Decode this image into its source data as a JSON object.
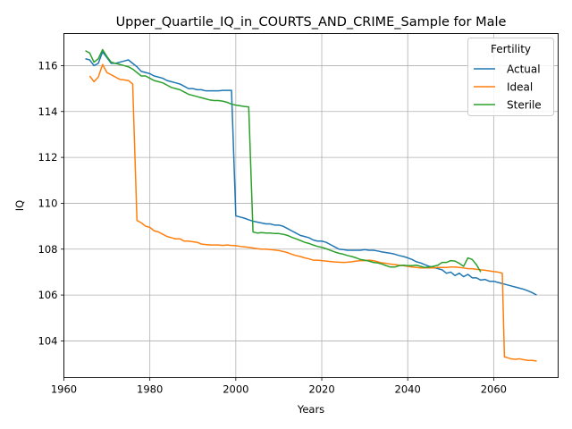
{
  "chart_data": {
    "type": "line",
    "title": "Upper_Quartile_IQ_in_COURTS_AND_CRIME_Sample for Male",
    "xlabel": "Years",
    "ylabel": "IQ",
    "xlim": [
      1960,
      2075
    ],
    "ylim": [
      102.4,
      117.4
    ],
    "xticks": [
      1960,
      1980,
      2000,
      2020,
      2040,
      2060
    ],
    "yticks": [
      104,
      106,
      108,
      110,
      112,
      114,
      116
    ],
    "grid": true,
    "legend": {
      "title": "Fertility",
      "position": "upper right"
    },
    "series": [
      {
        "name": "Actual",
        "color": "#1f77b4",
        "points": [
          [
            1965,
            116.3
          ],
          [
            1966,
            116.25
          ],
          [
            1967,
            116.0
          ],
          [
            1968,
            116.1
          ],
          [
            1969,
            116.6
          ],
          [
            1970,
            116.35
          ],
          [
            1971,
            116.1
          ],
          [
            1972,
            116.1
          ],
          [
            1973,
            116.15
          ],
          [
            1974,
            116.2
          ],
          [
            1975,
            116.25
          ],
          [
            1976,
            116.1
          ],
          [
            1977,
            115.95
          ],
          [
            1978,
            115.75
          ],
          [
            1979,
            115.7
          ],
          [
            1980,
            115.65
          ],
          [
            1981,
            115.55
          ],
          [
            1982,
            115.5
          ],
          [
            1983,
            115.45
          ],
          [
            1984,
            115.35
          ],
          [
            1985,
            115.3
          ],
          [
            1986,
            115.25
          ],
          [
            1987,
            115.2
          ],
          [
            1988,
            115.1
          ],
          [
            1989,
            115.0
          ],
          [
            1990,
            115.0
          ],
          [
            1991,
            114.95
          ],
          [
            1992,
            114.95
          ],
          [
            1993,
            114.9
          ],
          [
            1994,
            114.9
          ],
          [
            1995,
            114.9
          ],
          [
            1996,
            114.9
          ],
          [
            1997,
            114.92
          ],
          [
            1998,
            114.92
          ],
          [
            1999,
            114.92
          ],
          [
            2000,
            109.45
          ],
          [
            2001,
            109.4
          ],
          [
            2002,
            109.35
          ],
          [
            2003,
            109.28
          ],
          [
            2004,
            109.22
          ],
          [
            2005,
            109.18
          ],
          [
            2006,
            109.14
          ],
          [
            2007,
            109.1
          ],
          [
            2008,
            109.1
          ],
          [
            2009,
            109.05
          ],
          [
            2010,
            109.05
          ],
          [
            2011,
            109.0
          ],
          [
            2012,
            108.9
          ],
          [
            2013,
            108.8
          ],
          [
            2014,
            108.7
          ],
          [
            2015,
            108.6
          ],
          [
            2016,
            108.55
          ],
          [
            2017,
            108.5
          ],
          [
            2018,
            108.4
          ],
          [
            2019,
            108.35
          ],
          [
            2020,
            108.35
          ],
          [
            2021,
            108.3
          ],
          [
            2022,
            108.2
          ],
          [
            2023,
            108.1
          ],
          [
            2024,
            108.0
          ],
          [
            2025,
            107.98
          ],
          [
            2026,
            107.95
          ],
          [
            2027,
            107.95
          ],
          [
            2028,
            107.95
          ],
          [
            2029,
            107.95
          ],
          [
            2030,
            107.98
          ],
          [
            2031,
            107.95
          ],
          [
            2032,
            107.95
          ],
          [
            2033,
            107.92
          ],
          [
            2034,
            107.88
          ],
          [
            2035,
            107.85
          ],
          [
            2036,
            107.82
          ],
          [
            2037,
            107.78
          ],
          [
            2038,
            107.72
          ],
          [
            2039,
            107.68
          ],
          [
            2040,
            107.62
          ],
          [
            2041,
            107.55
          ],
          [
            2042,
            107.45
          ],
          [
            2043,
            107.4
          ],
          [
            2044,
            107.32
          ],
          [
            2045,
            107.25
          ],
          [
            2046,
            107.2
          ],
          [
            2047,
            107.15
          ],
          [
            2048,
            107.1
          ],
          [
            2049,
            106.95
          ],
          [
            2050,
            107.0
          ],
          [
            2051,
            106.85
          ],
          [
            2052,
            106.95
          ],
          [
            2053,
            106.8
          ],
          [
            2054,
            106.9
          ],
          [
            2055,
            106.75
          ],
          [
            2056,
            106.75
          ],
          [
            2057,
            106.65
          ],
          [
            2058,
            106.68
          ],
          [
            2059,
            106.6
          ],
          [
            2060,
            106.6
          ],
          [
            2061,
            106.55
          ],
          [
            2062,
            106.5
          ],
          [
            2063,
            106.45
          ],
          [
            2064,
            106.4
          ],
          [
            2065,
            106.35
          ],
          [
            2066,
            106.3
          ],
          [
            2067,
            106.25
          ],
          [
            2068,
            106.18
          ],
          [
            2069,
            106.1
          ],
          [
            2070,
            106.0
          ]
        ]
      },
      {
        "name": "Ideal",
        "color": "#ff7f0e",
        "points": [
          [
            1966,
            115.55
          ],
          [
            1967,
            115.3
          ],
          [
            1968,
            115.5
          ],
          [
            1969,
            116.05
          ],
          [
            1970,
            115.7
          ],
          [
            1971,
            115.6
          ],
          [
            1972,
            115.5
          ],
          [
            1973,
            115.4
          ],
          [
            1974,
            115.38
          ],
          [
            1975,
            115.35
          ],
          [
            1976,
            115.2
          ],
          [
            1977,
            109.25
          ],
          [
            1978,
            109.15
          ],
          [
            1979,
            109.0
          ],
          [
            1980,
            108.95
          ],
          [
            1981,
            108.8
          ],
          [
            1982,
            108.75
          ],
          [
            1983,
            108.65
          ],
          [
            1984,
            108.55
          ],
          [
            1985,
            108.5
          ],
          [
            1986,
            108.45
          ],
          [
            1987,
            108.45
          ],
          [
            1988,
            108.35
          ],
          [
            1989,
            108.35
          ],
          [
            1990,
            108.32
          ],
          [
            1991,
            108.3
          ],
          [
            1992,
            108.22
          ],
          [
            1993,
            108.2
          ],
          [
            1994,
            108.18
          ],
          [
            1995,
            108.18
          ],
          [
            1996,
            108.18
          ],
          [
            1997,
            108.16
          ],
          [
            1998,
            108.18
          ],
          [
            1999,
            108.16
          ],
          [
            2000,
            108.15
          ],
          [
            2001,
            108.12
          ],
          [
            2002,
            108.1
          ],
          [
            2003,
            108.08
          ],
          [
            2004,
            108.05
          ],
          [
            2005,
            108.02
          ],
          [
            2006,
            108.0
          ],
          [
            2007,
            108.0
          ],
          [
            2008,
            107.98
          ],
          [
            2009,
            107.96
          ],
          [
            2010,
            107.94
          ],
          [
            2011,
            107.9
          ],
          [
            2012,
            107.85
          ],
          [
            2013,
            107.78
          ],
          [
            2014,
            107.72
          ],
          [
            2015,
            107.68
          ],
          [
            2016,
            107.62
          ],
          [
            2017,
            107.58
          ],
          [
            2018,
            107.52
          ],
          [
            2019,
            107.52
          ],
          [
            2020,
            107.5
          ],
          [
            2021,
            107.48
          ],
          [
            2022,
            107.46
          ],
          [
            2023,
            107.44
          ],
          [
            2024,
            107.43
          ],
          [
            2025,
            107.42
          ],
          [
            2026,
            107.43
          ],
          [
            2027,
            107.45
          ],
          [
            2028,
            107.48
          ],
          [
            2029,
            107.5
          ],
          [
            2030,
            107.5
          ],
          [
            2031,
            107.52
          ],
          [
            2032,
            107.5
          ],
          [
            2033,
            107.45
          ],
          [
            2034,
            107.4
          ],
          [
            2035,
            107.38
          ],
          [
            2036,
            107.35
          ],
          [
            2037,
            107.33
          ],
          [
            2038,
            107.3
          ],
          [
            2039,
            107.28
          ],
          [
            2040,
            107.25
          ],
          [
            2041,
            107.22
          ],
          [
            2042,
            107.2
          ],
          [
            2043,
            107.18
          ],
          [
            2044,
            107.18
          ],
          [
            2045,
            107.18
          ],
          [
            2046,
            107.18
          ],
          [
            2047,
            107.2
          ],
          [
            2048,
            107.2
          ],
          [
            2049,
            107.2
          ],
          [
            2050,
            107.22
          ],
          [
            2051,
            107.22
          ],
          [
            2052,
            107.2
          ],
          [
            2053,
            107.18
          ],
          [
            2054,
            107.15
          ],
          [
            2055,
            107.15
          ],
          [
            2056,
            107.12
          ],
          [
            2057,
            107.1
          ],
          [
            2058,
            107.08
          ],
          [
            2059,
            107.05
          ],
          [
            2060,
            107.02
          ],
          [
            2061,
            107.0
          ],
          [
            2062,
            106.95
          ],
          [
            2062.5,
            103.3
          ],
          [
            2063,
            103.28
          ],
          [
            2064,
            103.22
          ],
          [
            2065,
            103.2
          ],
          [
            2066,
            103.22
          ],
          [
            2067,
            103.18
          ],
          [
            2068,
            103.15
          ],
          [
            2069,
            103.15
          ],
          [
            2070,
            103.12
          ]
        ]
      },
      {
        "name": "Sterile",
        "color": "#2ca02c",
        "points": [
          [
            1965,
            116.65
          ],
          [
            1966,
            116.55
          ],
          [
            1967,
            116.15
          ],
          [
            1968,
            116.3
          ],
          [
            1969,
            116.7
          ],
          [
            1970,
            116.4
          ],
          [
            1971,
            116.15
          ],
          [
            1972,
            116.1
          ],
          [
            1973,
            116.05
          ],
          [
            1974,
            116.0
          ],
          [
            1975,
            115.95
          ],
          [
            1976,
            115.85
          ],
          [
            1977,
            115.7
          ],
          [
            1978,
            115.55
          ],
          [
            1979,
            115.55
          ],
          [
            1980,
            115.45
          ],
          [
            1981,
            115.35
          ],
          [
            1982,
            115.3
          ],
          [
            1983,
            115.25
          ],
          [
            1984,
            115.15
          ],
          [
            1985,
            115.05
          ],
          [
            1986,
            115.0
          ],
          [
            1987,
            114.95
          ],
          [
            1988,
            114.85
          ],
          [
            1989,
            114.75
          ],
          [
            1990,
            114.7
          ],
          [
            1991,
            114.65
          ],
          [
            1992,
            114.6
          ],
          [
            1993,
            114.55
          ],
          [
            1994,
            114.5
          ],
          [
            1995,
            114.48
          ],
          [
            1996,
            114.48
          ],
          [
            1997,
            114.45
          ],
          [
            1998,
            114.4
          ],
          [
            1999,
            114.32
          ],
          [
            2000,
            114.28
          ],
          [
            2001,
            114.25
          ],
          [
            2002,
            114.22
          ],
          [
            2003,
            114.2
          ],
          [
            2004,
            108.75
          ],
          [
            2005,
            108.7
          ],
          [
            2006,
            108.72
          ],
          [
            2007,
            108.7
          ],
          [
            2008,
            108.7
          ],
          [
            2009,
            108.68
          ],
          [
            2010,
            108.68
          ],
          [
            2011,
            108.65
          ],
          [
            2012,
            108.6
          ],
          [
            2013,
            108.52
          ],
          [
            2014,
            108.45
          ],
          [
            2015,
            108.38
          ],
          [
            2016,
            108.3
          ],
          [
            2017,
            108.25
          ],
          [
            2018,
            108.18
          ],
          [
            2019,
            108.12
          ],
          [
            2020,
            108.08
          ],
          [
            2021,
            108.02
          ],
          [
            2022,
            107.95
          ],
          [
            2023,
            107.88
          ],
          [
            2024,
            107.82
          ],
          [
            2025,
            107.78
          ],
          [
            2026,
            107.72
          ],
          [
            2027,
            107.68
          ],
          [
            2028,
            107.62
          ],
          [
            2029,
            107.55
          ],
          [
            2030,
            107.52
          ],
          [
            2031,
            107.48
          ],
          [
            2032,
            107.42
          ],
          [
            2033,
            107.4
          ],
          [
            2034,
            107.35
          ],
          [
            2035,
            107.28
          ],
          [
            2036,
            107.22
          ],
          [
            2037,
            107.22
          ],
          [
            2038,
            107.28
          ],
          [
            2039,
            107.3
          ],
          [
            2040,
            107.28
          ],
          [
            2041,
            107.28
          ],
          [
            2042,
            107.3
          ],
          [
            2043,
            107.25
          ],
          [
            2044,
            107.2
          ],
          [
            2045,
            107.22
          ],
          [
            2046,
            107.25
          ],
          [
            2047,
            107.3
          ],
          [
            2048,
            107.42
          ],
          [
            2049,
            107.42
          ],
          [
            2050,
            107.5
          ],
          [
            2051,
            107.48
          ],
          [
            2052,
            107.38
          ],
          [
            2053,
            107.25
          ],
          [
            2054,
            107.62
          ],
          [
            2055,
            107.55
          ],
          [
            2056,
            107.32
          ],
          [
            2057,
            107.0
          ]
        ]
      }
    ]
  }
}
